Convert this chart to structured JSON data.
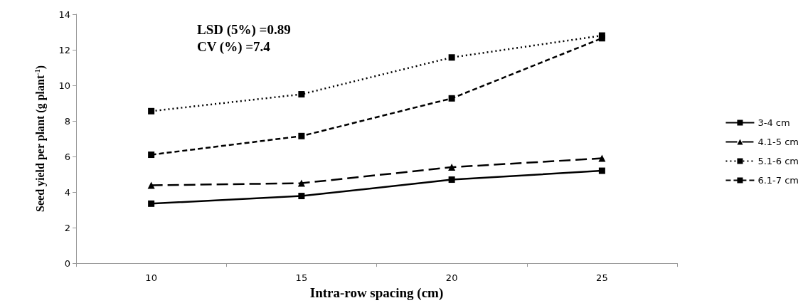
{
  "chart_data": {
    "type": "line",
    "xlabel": "Intra-row spacing (cm)",
    "ylabel": "Seed yield per plant (g plant$^{-1}$)",
    "categories": [
      "10",
      "15",
      "20",
      "25"
    ],
    "ylim": [
      0,
      14
    ],
    "yticks": [
      0,
      2,
      4,
      6,
      8,
      10,
      12,
      14
    ],
    "grid": false,
    "legend": "right",
    "annotations": [
      "LSD (5%) =0.89",
      "CV (%) =7.4"
    ],
    "series": [
      {
        "name": "3-4 cm",
        "color": "#000000",
        "marker": "square",
        "line_style": "solid",
        "values": [
          3.35,
          3.78,
          4.7,
          5.2
        ]
      },
      {
        "name": "4.1-5 cm",
        "color": "#000000",
        "marker": "triangle",
        "line_style": "longdash",
        "values": [
          4.38,
          4.5,
          5.4,
          5.9
        ]
      },
      {
        "name": "5.1-6 cm",
        "color": "#000000",
        "marker": "square",
        "line_style": "dotted",
        "values": [
          8.55,
          9.5,
          11.57,
          12.8
        ]
      },
      {
        "name": "6.1-7 cm",
        "color": "#000000",
        "marker": "square",
        "line_style": "dashed",
        "values": [
          6.1,
          7.15,
          9.27,
          12.65
        ]
      }
    ]
  }
}
